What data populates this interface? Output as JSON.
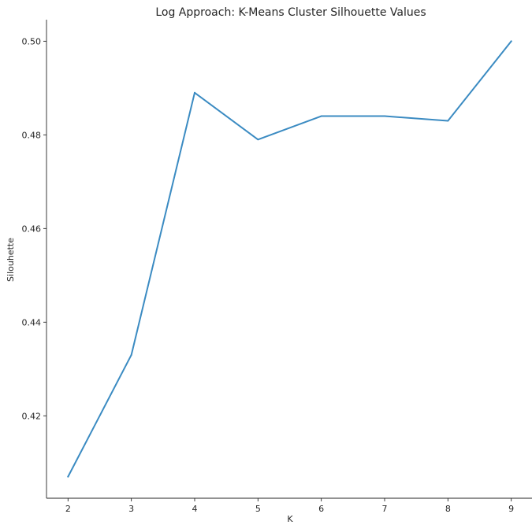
{
  "chart_data": {
    "type": "line",
    "title": "Log Approach: K-Means Cluster Silhouette Values",
    "xlabel": "K",
    "ylabel": "Silouhette",
    "x": [
      2,
      3,
      4,
      5,
      6,
      7,
      8,
      9
    ],
    "series": [
      {
        "values": [
          0.407,
          0.433,
          0.489,
          0.479,
          0.484,
          0.484,
          0.483,
          0.5
        ],
        "color": "#3b8bc2"
      }
    ],
    "xticks": [
      2,
      3,
      4,
      5,
      6,
      7,
      8,
      9
    ],
    "xtick_labels": [
      "2",
      "3",
      "4",
      "5",
      "6",
      "7",
      "8",
      "9"
    ],
    "yticks": [
      0.42,
      0.44,
      0.46,
      0.48,
      0.5
    ],
    "ytick_labels": [
      "0.42",
      "0.44",
      "0.46",
      "0.48",
      "0.50"
    ],
    "xlim": [
      1.66,
      9.34
    ],
    "ylim": [
      0.4024,
      0.5046
    ],
    "grid": false,
    "legend": "none"
  }
}
